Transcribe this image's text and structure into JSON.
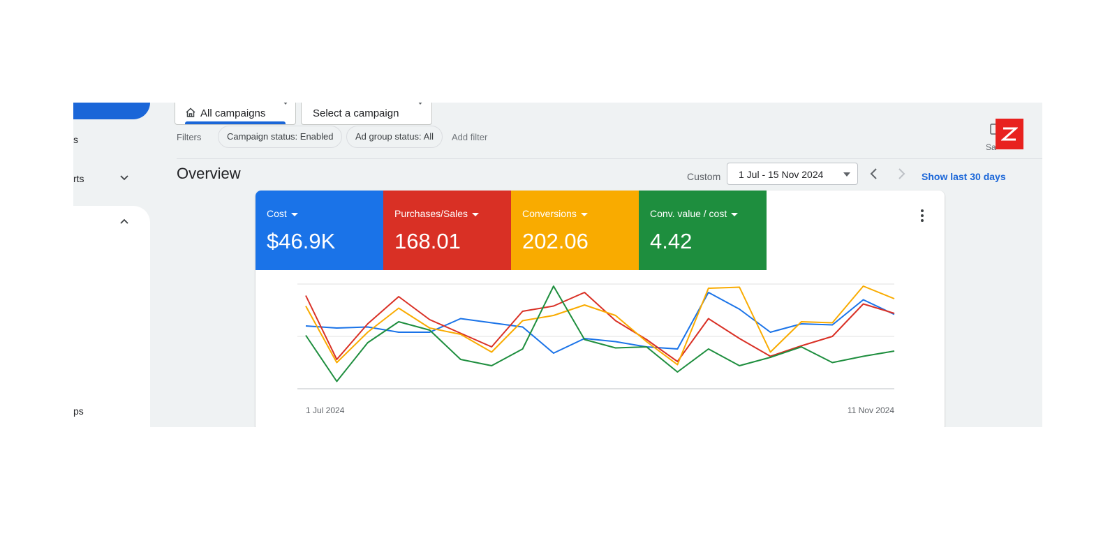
{
  "sidebar": {
    "items": [
      {
        "label": "s"
      },
      {
        "label": "rts"
      },
      {
        "label": "ps"
      }
    ]
  },
  "scope": {
    "all_campaigns": "All campaigns",
    "select_campaign": "Select a campaign"
  },
  "filters": {
    "label": "Filters",
    "chips": [
      "Campaign status: Enabled",
      "Ad group status: All"
    ],
    "add_filter": "Add filter"
  },
  "overview": {
    "title": "Overview",
    "custom_label": "Custom",
    "date_range": "1 Jul - 15 Nov 2024",
    "show_last": "Show last 30 days",
    "save_label": "Sa"
  },
  "metrics": [
    {
      "label": "Cost",
      "value": "$46.9K",
      "color": "#1a73e8"
    },
    {
      "label": "Purchases/Sales",
      "value": "168.01",
      "color": "#d93025"
    },
    {
      "label": "Conversions",
      "value": "202.06",
      "color": "#f9ab00"
    },
    {
      "label": "Conv. value / cost",
      "value": "4.42",
      "color": "#1e8e3e"
    }
  ],
  "icons": [
    "home-icon",
    "chevron-down-icon",
    "chevron-up-icon",
    "chevron-left-icon",
    "chevron-right-icon",
    "more-vert-icon",
    "expand-icon"
  ],
  "chart_data": {
    "type": "line",
    "x_start_label": "1 Jul 2024",
    "x_end_label": "11 Nov 2024",
    "ylim": [
      0,
      100
    ],
    "grid": true,
    "series": [
      {
        "color": "#1a73e8",
        "values": [
          60,
          58,
          59,
          54,
          54,
          67,
          63,
          59,
          34,
          48,
          45,
          40,
          38,
          92,
          76,
          54,
          62,
          61,
          85,
          71
        ]
      },
      {
        "color": "#d93025",
        "values": [
          89,
          28,
          62,
          88,
          66,
          53,
          40,
          74,
          79,
          92,
          65,
          47,
          26,
          67,
          48,
          31,
          41,
          50,
          81,
          72
        ]
      },
      {
        "color": "#f9ab00",
        "values": [
          79,
          25,
          54,
          77,
          58,
          52,
          35,
          65,
          70,
          80,
          70,
          45,
          23,
          96,
          97,
          35,
          64,
          63,
          98,
          86
        ]
      },
      {
        "color": "#1e8e3e",
        "values": [
          51,
          7,
          44,
          64,
          56,
          28,
          22,
          38,
          98,
          47,
          39,
          40,
          16,
          38,
          22,
          30,
          40,
          25,
          31,
          36
        ]
      }
    ]
  }
}
